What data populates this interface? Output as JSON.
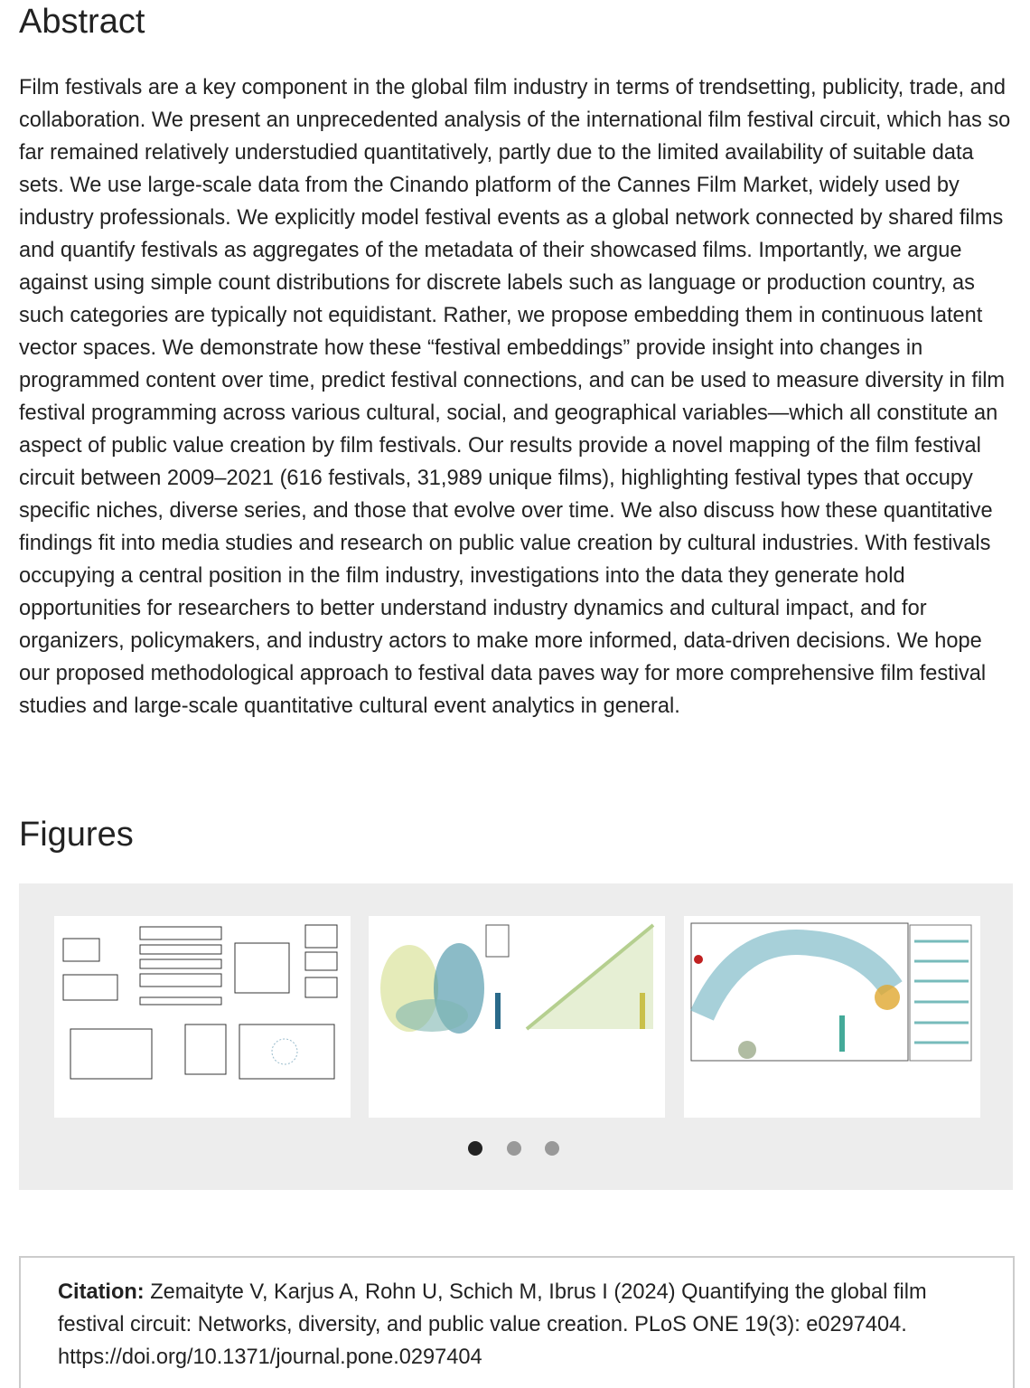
{
  "abstract": {
    "heading": "Abstract",
    "text": "Film festivals are a key component in the global film industry in terms of trendsetting, publicity, trade, and collaboration. We present an unprecedented analysis of the international film festival circuit, which has so far remained relatively understudied quantitatively, partly due to the limited availability of suitable data sets. We use large-scale data from the Cinando platform of the Cannes Film Market, widely used by industry professionals. We explicitly model festival events as a global network connected by shared films and quantify festivals as aggregates of the metadata of their showcased films. Importantly, we argue against using simple count distributions for discrete labels such as language or production country, as such categories are typically not equidistant. Rather, we propose embedding them in continuous latent vector spaces. We demonstrate how these “festival embeddings” provide insight into changes in programmed content over time, predict festival connections, and can be used to measure diversity in film festival programming across various cultural, social, and geographical variables—which all constitute an aspect of public value creation by film festivals. Our results provide a novel mapping of the film festival circuit between 2009–2021 (616 festivals, 31,989 unique films), highlighting festival types that occupy specific niches, diverse series, and those that evolve over time. We also discuss how these quantitative findings fit into media studies and research on public value creation by cultural industries. With festivals occupying a central position in the film industry, investigations into the data they generate hold opportunities for researchers to better understand industry dynamics and cultural impact, and for organizers, policymakers, and industry actors to make more informed, data-driven decisions. We hope our proposed methodological approach to festival data paves way for more comprehensive film festival studies and large-scale quantitative cultural event analytics in general."
  },
  "figures": {
    "heading": "Figures"
  },
  "citation": {
    "label": "Citation:",
    "text": "Zemaityte V, Karjus A, Rohn U, Schich M, Ibrus I (2024) Quantifying the global film festival circuit: Networks, diversity, and public value creation. PLoS ONE 19(3): e0297404. https://doi.org/10.1371/journal.pone.0297404"
  }
}
